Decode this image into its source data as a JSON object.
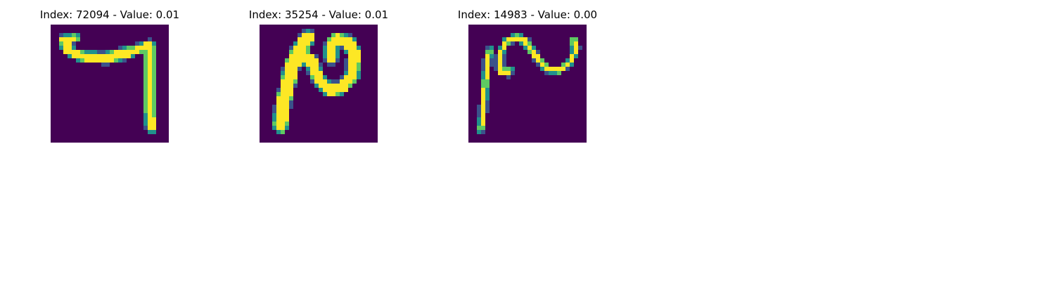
{
  "panels": [
    {
      "index_label": "Index: 72094 - Value: 0.01",
      "digit": "7"
    },
    {
      "index_label": "Index: 35254 - Value: 0.01",
      "digit": "2"
    },
    {
      "index_label": "Index: 14983 - Value: 0.00",
      "digit": "2"
    }
  ],
  "colormap": {
    "background": "#440154",
    "low": "#3b528b",
    "mid": "#21918c",
    "high_mid": "#5ec962",
    "high": "#fde725"
  }
}
